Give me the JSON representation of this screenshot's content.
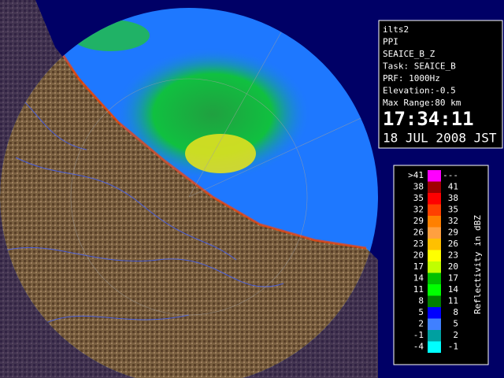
{
  "info": {
    "lines": [
      "ilts2",
      "PPI",
      "SEAICE_B_Z",
      "Task: SEAICE_B",
      "PRF: 1000Hz",
      "Elevation:-0.5",
      "Max Range:80 km"
    ],
    "time": "17:34:11",
    "date": "18 JUL 2008 JST"
  },
  "legend": {
    "title": "Reflectivity in dBZ",
    "rows": [
      {
        "low": ">41",
        "high": "---",
        "color": "#ff00ff"
      },
      {
        "low": "38",
        "high": "41",
        "color": "#a00000"
      },
      {
        "low": "35",
        "high": "38",
        "color": "#ff0000"
      },
      {
        "low": "32",
        "high": "35",
        "color": "#ff4000"
      },
      {
        "low": "29",
        "high": "32",
        "color": "#ff8000"
      },
      {
        "low": "26",
        "high": "29",
        "color": "#ffa040"
      },
      {
        "low": "23",
        "high": "26",
        "color": "#ffc000"
      },
      {
        "low": "20",
        "high": "23",
        "color": "#ffff00"
      },
      {
        "low": "17",
        "high": "20",
        "color": "#c0ff00"
      },
      {
        "low": "14",
        "high": "17",
        "color": "#00c000"
      },
      {
        "low": "11",
        "high": "14",
        "color": "#00ff00"
      },
      {
        "low": "8",
        "high": "11",
        "color": "#008000"
      },
      {
        "low": "5",
        "high": "8",
        "color": "#0000ff"
      },
      {
        "low": "2",
        "high": "5",
        "color": "#4080ff"
      },
      {
        "low": "-1",
        "high": "2",
        "color": "#00a0a0"
      },
      {
        "low": "-4",
        "high": "-1",
        "color": "#00ffff"
      }
    ]
  }
}
